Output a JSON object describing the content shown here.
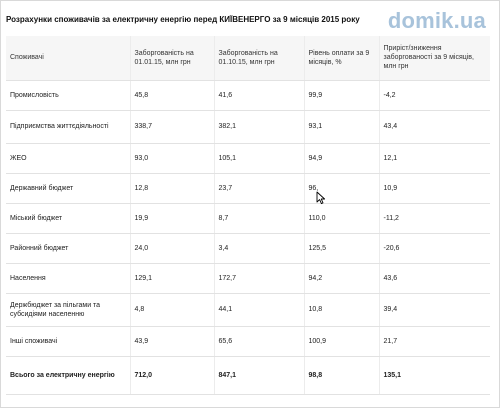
{
  "title": "Розрахунки споживачів за електричну енергію перед КИЇВЕНЕРГО за 9 місяців 2015 року",
  "watermark": "domik.ua",
  "table": {
    "headers": [
      "Споживачі",
      "Заборгованість на 01.01.15, млн грн",
      "Заборгованість на 01.10.15, млн грн",
      "Рівень оплати за 9 місяців, %",
      "Приріст/зниження заборгованості за 9 місяців, млн грн"
    ],
    "rows": [
      [
        "Промисловість",
        "45,8",
        "41,6",
        "99,9",
        "-4,2"
      ],
      [
        "Підприємства життєдіяльності",
        "338,7",
        "382,1",
        "93,1",
        "43,4"
      ],
      [
        "ЖЕО",
        "93,0",
        "105,1",
        "94,9",
        "12,1"
      ],
      [
        "Державний бюджет",
        "12,8",
        "23,7",
        "96,",
        "10,9"
      ],
      [
        "Міський бюджет",
        "19,9",
        "8,7",
        "110,0",
        "-11,2"
      ],
      [
        "Районний бюджет",
        "24,0",
        "3,4",
        "125,5",
        "-20,6"
      ],
      [
        "Населення",
        "129,1",
        "172,7",
        "94,2",
        "43,6"
      ],
      [
        "Держбюджет за пільгами та субсидіями населенню",
        "4,8",
        "44,1",
        "10,8",
        "39,4"
      ],
      [
        "Інші споживачі",
        "43,9",
        "65,6",
        "100,9",
        "21,7"
      ],
      [
        "Всього за електричну енергію",
        "712,0",
        "847,1",
        "98,8",
        "135,1"
      ]
    ]
  },
  "icons": {
    "cursor": "mouse-pointer-icon"
  }
}
